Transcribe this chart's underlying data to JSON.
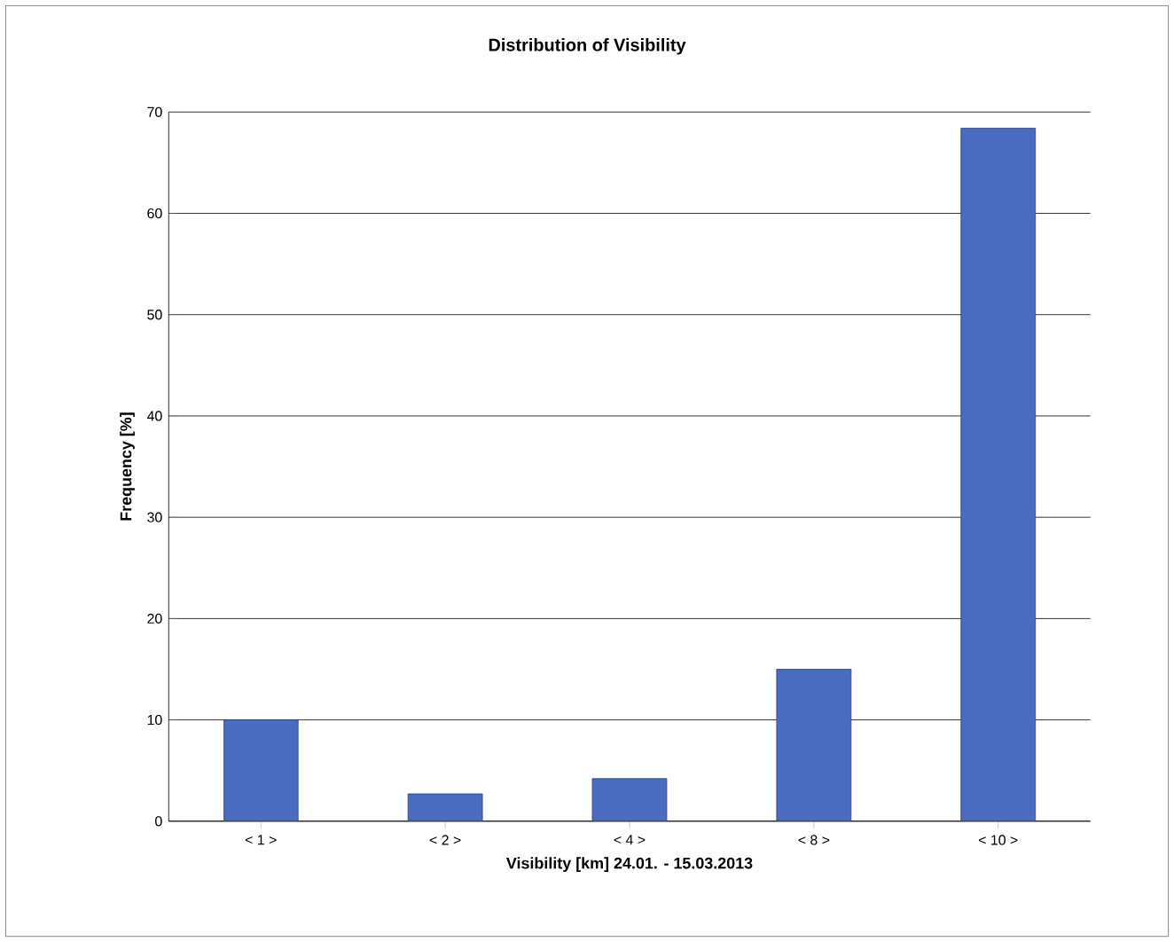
{
  "chart_data": {
    "type": "bar",
    "title": "Distribution of Visibility",
    "xlabel": "Visibility [km]  24.01. - 15.03.2013",
    "ylabel": "Frequency [%]",
    "categories": [
      "< 1 >",
      "< 2 >",
      "< 4 >",
      "< 8 >",
      "< 10 >"
    ],
    "values": [
      10,
      2.7,
      4.2,
      15,
      68.4
    ],
    "color": "#4a6cbf",
    "ylim": [
      0,
      70
    ],
    "yticks": [
      0,
      10,
      20,
      30,
      40,
      50,
      60,
      70
    ],
    "grid": "y"
  }
}
